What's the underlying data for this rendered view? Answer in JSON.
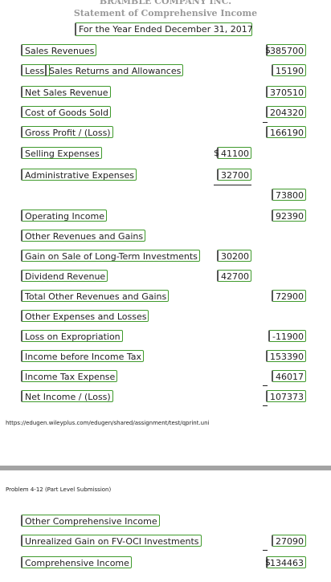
{
  "header": {
    "company": "BRAMBLE COMPANY INC.",
    "title": "Statement of Comprehensive Income",
    "period": "For the Year Ended December 31, 2017"
  },
  "income_statement": [
    {
      "label": "Sales Revenues",
      "col2_sign": "$",
      "col2": 385700
    },
    {
      "prefix": "Less:",
      "label": "Sales Returns and Allowances",
      "col2": 15190
    },
    {
      "label": "Net Sales Revenue",
      "col2": 370510
    },
    {
      "label": "Cost of Goods Sold",
      "col2": 204320
    },
    {
      "label": "Gross Profit / (Loss)",
      "col2": 166190
    },
    {
      "label": "Selling Expenses",
      "col1_sign": "$",
      "col1": 41100
    },
    {
      "label": "Administrative Expenses",
      "col1": 32700
    },
    {
      "col2": 73800
    },
    {
      "label": "Operating Income",
      "col2": 92390
    },
    {
      "label": "Other Revenues and Gains"
    },
    {
      "label": "Gain on Sale of Long-Term Investments",
      "col1": 30200
    },
    {
      "label": "Dividend Revenue",
      "col1": 42700
    },
    {
      "label": "Total Other Revenues and Gains",
      "col2": 72900
    },
    {
      "label": "Other Expenses and Losses"
    },
    {
      "label": "Loss on Expropriation",
      "col2": -11900
    },
    {
      "label": "Income before Income Tax",
      "col2": 153390
    },
    {
      "label": "Income Tax Expense",
      "col2": 46017
    },
    {
      "label": "Net Income / (Loss)",
      "col2": 107373
    }
  ],
  "footer_url": "https://edugen.wileyplus.com/edugen/shared/assignment/test/qprint.uni",
  "problem_label": "Problem 4-12 (Part Level Submission)",
  "comprehensive_income": [
    {
      "label": "Other Comprehensive Income"
    },
    {
      "label": "Unrealized Gain on FV-OCI Investments",
      "col2": 27090
    },
    {
      "label": "Comprehensive Income",
      "col2_sign": "$",
      "col2": 134463
    }
  ]
}
